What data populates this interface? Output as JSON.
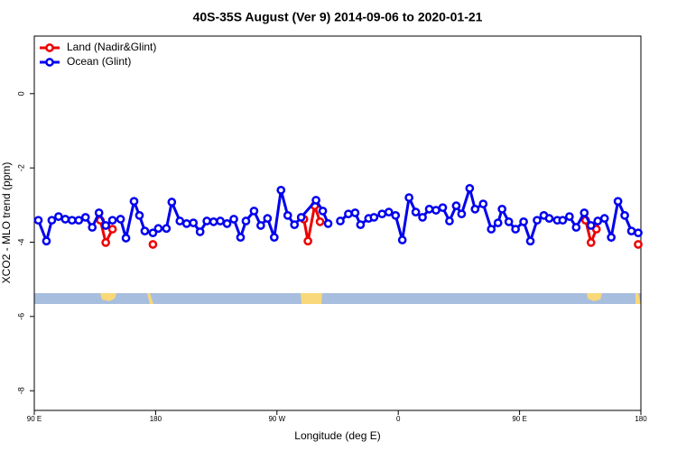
{
  "chart_data": {
    "type": "line",
    "title": "40S-35S August (Ver 9)   2014-09-06 to 2020-01-21",
    "x_label": "Longitude (deg E)",
    "y_label": "XCO2 - MLO trend (ppm)",
    "xlim": [
      90,
      540
    ],
    "ylim": [
      -8.53,
      1.55
    ],
    "xticks": [
      {
        "value": 90,
        "label": "90 E"
      },
      180,
      {
        "value": 270,
        "label": "90 W"
      },
      {
        "value": 360,
        "label": "0"
      },
      {
        "value": 450,
        "label": "90 E"
      },
      {
        "value": 540,
        "label": "180"
      }
    ],
    "yticks": [
      -8,
      -6,
      -4,
      -2,
      0
    ],
    "legend": "top-left",
    "series": [
      {
        "name": "Land (Nadir&Glint)",
        "color": "#ee0000",
        "x": [
          139,
          143,
          148,
          160,
          178,
          230,
          290,
          293,
          298,
          302,
          400,
          499,
          503,
          507,
          520,
          538
        ],
        "values": [
          -3.41,
          -4.01,
          -3.65,
          null,
          -4.06,
          null,
          -3.38,
          -3.97,
          -3.02,
          -3.45,
          null,
          -3.41,
          -4.01,
          -3.65,
          null,
          -4.06
        ]
      },
      {
        "name": "Ocean (Glint)",
        "color": "#0000ee",
        "x": [
          93,
          99,
          103,
          108,
          113,
          118,
          123,
          128,
          133,
          138,
          143,
          148,
          154,
          158,
          164,
          168,
          172,
          178,
          182,
          188,
          192,
          198,
          203,
          208,
          213,
          218,
          223,
          228,
          233,
          238,
          243,
          247,
          253,
          258,
          263,
          268,
          273,
          278,
          283,
          288,
          299,
          304,
          308,
          312,
          317,
          323,
          328,
          332,
          338,
          342,
          348,
          353,
          358,
          363,
          368,
          373,
          378,
          383,
          388,
          393,
          398,
          403,
          407,
          413,
          417,
          423,
          429,
          434,
          437,
          442,
          447,
          453,
          458,
          463,
          468,
          472,
          478,
          482,
          487,
          492,
          498,
          503,
          508,
          513,
          518,
          523,
          528,
          533,
          538
        ],
        "values": [
          -3.41,
          -3.97,
          -3.41,
          -3.31,
          -3.38,
          -3.41,
          -3.41,
          -3.33,
          -3.6,
          -3.21,
          -3.55,
          -3.41,
          -3.38,
          -3.89,
          -2.9,
          -3.28,
          -3.7,
          -3.75,
          -3.63,
          -3.63,
          -2.92,
          -3.43,
          -3.5,
          -3.48,
          -3.72,
          -3.43,
          -3.45,
          -3.43,
          -3.5,
          -3.38,
          -3.87,
          -3.43,
          -3.16,
          -3.55,
          -3.36,
          -3.87,
          -2.6,
          -3.28,
          -3.53,
          -3.33,
          -2.87,
          -3.16,
          -3.5,
          null,
          -3.43,
          -3.24,
          -3.21,
          -3.53,
          -3.36,
          -3.33,
          -3.24,
          -3.19,
          -3.28,
          -3.94,
          -2.8,
          -3.19,
          -3.33,
          -3.11,
          -3.14,
          -3.07,
          -3.43,
          -3.02,
          -3.24,
          -2.55,
          -3.11,
          -2.97,
          -3.65,
          -3.48,
          -3.11,
          -3.45,
          -3.65,
          -3.45,
          -3.97,
          -3.41,
          -3.28,
          -3.36,
          -3.41,
          -3.41,
          -3.31,
          -3.6,
          -3.21,
          -3.55,
          -3.43,
          -3.36,
          -3.87,
          -2.9,
          -3.28,
          -3.7,
          -3.75
        ]
      }
    ]
  }
}
